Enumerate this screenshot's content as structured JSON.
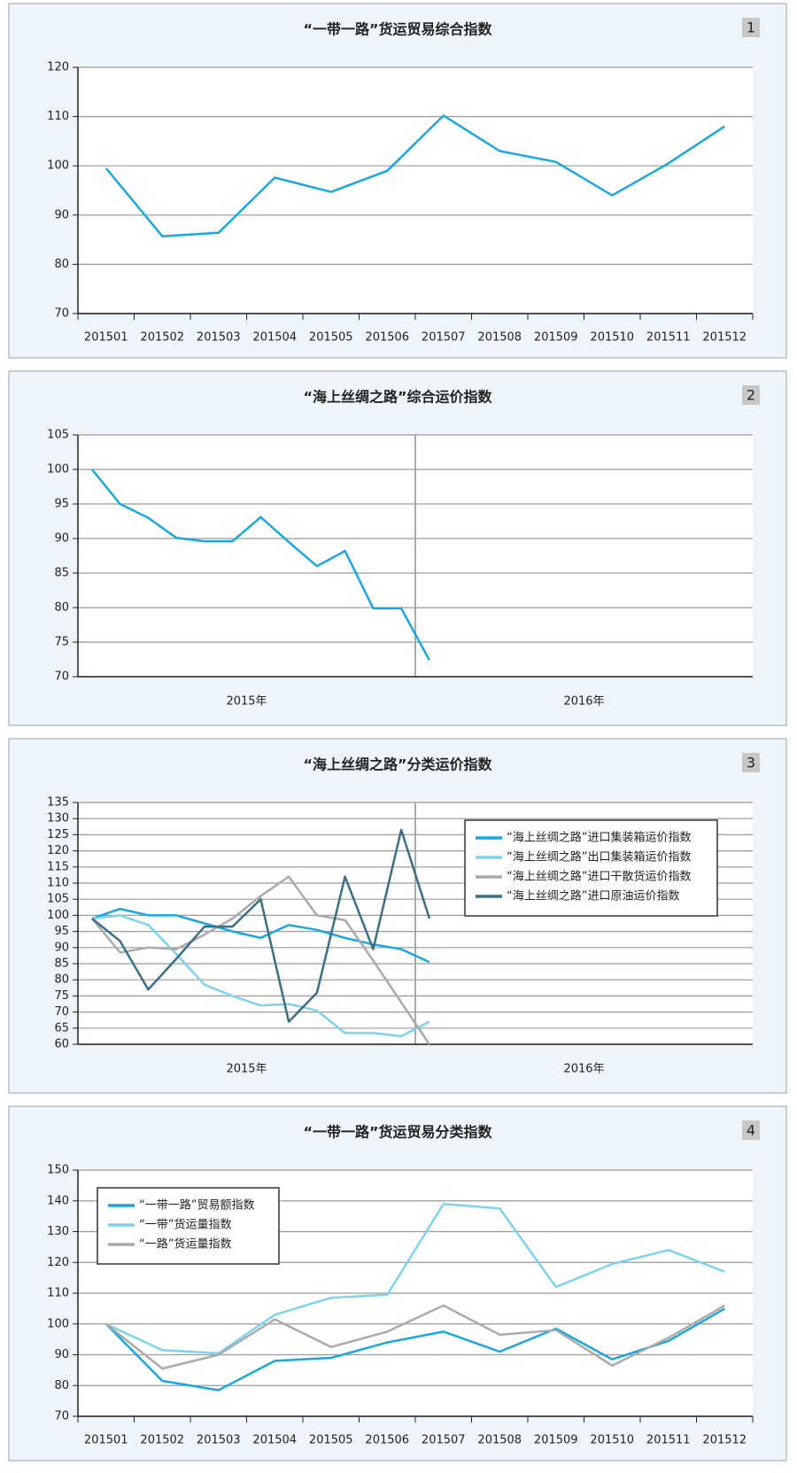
{
  "chart_data": [
    {
      "type": "line",
      "number": "1",
      "title": "“一带一路”货运贸易综合指数",
      "categories": [
        "201501",
        "201502",
        "201503",
        "201504",
        "201505",
        "201506",
        "201507",
        "201508",
        "201509",
        "201510",
        "201511",
        "201512"
      ],
      "series": [
        {
          "color": "#1aa7e0",
          "values": [
            99.5,
            85.7,
            86.4,
            97.6,
            94.7,
            99.0,
            110.2,
            103.0,
            100.8,
            94.0,
            100.5,
            108.0
          ]
        }
      ],
      "ylim": [
        70,
        120
      ],
      "yticks": [
        70,
        80,
        90,
        100,
        110,
        120
      ],
      "grid": true
    },
    {
      "type": "line",
      "number": "2",
      "title": "“海上丝绸之路”综合运价指数",
      "categories": [
        null,
        null,
        null,
        null,
        null,
        null,
        null,
        null,
        null,
        null,
        null,
        null,
        null,
        null,
        null,
        null,
        null,
        null,
        null,
        null,
        null,
        null,
        null,
        null
      ],
      "groups": [
        "2015年",
        "2016年"
      ],
      "series": [
        {
          "color": "#1aa7e0",
          "values": [
            100,
            95,
            93,
            90.1,
            89.6,
            89.6,
            93.1,
            89.5,
            86,
            88.2,
            79.9,
            79.9,
            72.4,
            null,
            null,
            null,
            null,
            null,
            null,
            null,
            null,
            null,
            null,
            null
          ]
        }
      ],
      "ylim": [
        70,
        105
      ],
      "yticks": [
        70,
        75,
        80,
        85,
        90,
        95,
        100,
        105
      ],
      "grid": true
    },
    {
      "type": "line",
      "number": "3",
      "title": "“海上丝绸之路”分类运价指数",
      "categories": [
        null,
        null,
        null,
        null,
        null,
        null,
        null,
        null,
        null,
        null,
        null,
        null,
        null,
        null,
        null,
        null,
        null,
        null,
        null,
        null,
        null,
        null,
        null,
        null
      ],
      "groups": [
        "2015年",
        "2016年"
      ],
      "series": [
        {
          "name": "“海上丝绸之路”进口集装箱运价指数",
          "color": "#1aa7e0",
          "values": [
            99,
            102,
            100,
            100,
            97.5,
            95,
            93,
            97,
            95.5,
            93,
            91,
            89.5,
            85.5,
            null,
            null,
            null,
            null,
            null,
            null,
            null,
            null,
            null,
            null,
            null
          ]
        },
        {
          "name": "“海上丝绸之路”出口集装箱运价指数",
          "color": "#7dd3ee",
          "values": [
            99,
            100,
            97,
            88,
            78.5,
            75,
            72,
            72.5,
            70.5,
            63.5,
            63.5,
            62.5,
            67,
            null,
            null,
            null,
            null,
            null,
            null,
            null,
            null,
            null,
            null,
            null
          ]
        },
        {
          "name": "“海上丝绸之路”进口干散货运价指数",
          "color": "#aaaaaa",
          "values": [
            99,
            88.5,
            90,
            89.5,
            94,
            99,
            106,
            112,
            100,
            98.5,
            86,
            73,
            60,
            null,
            null,
            null,
            null,
            null,
            null,
            null,
            null,
            null,
            null,
            null
          ]
        },
        {
          "name": "“海上丝绸之路”进口原油运价指数",
          "color": "#3d6e87",
          "values": [
            99,
            92,
            77,
            86.5,
            96.5,
            96.5,
            105,
            67,
            76,
            112,
            89.5,
            126.5,
            99,
            null,
            null,
            null,
            null,
            null,
            null,
            null,
            null,
            null,
            null,
            null
          ]
        }
      ],
      "ylim": [
        60,
        135
      ],
      "yticks": [
        60,
        65,
        70,
        75,
        80,
        85,
        90,
        95,
        100,
        105,
        110,
        115,
        120,
        125,
        130,
        135
      ],
      "grid": true,
      "legend": "upper right"
    },
    {
      "type": "line",
      "number": "4",
      "title": "“一带一路”货运贸易分类指数",
      "categories": [
        "201501",
        "201502",
        "201503",
        "201504",
        "201505",
        "201506",
        "201507",
        "201508",
        "201509",
        "201510",
        "201511",
        "201512"
      ],
      "series": [
        {
          "name": "“一带一路”贸易额指数",
          "color": "#1aa7e0",
          "values": [
            100,
            81.5,
            78.5,
            88,
            89,
            94,
            97.5,
            91,
            98.5,
            88.5,
            94.5,
            105
          ]
        },
        {
          "name": "“一带”货运量指数",
          "color": "#7dd3ee",
          "values": [
            100,
            91.5,
            90.5,
            103,
            108.5,
            109.5,
            139,
            137.5,
            112,
            119.5,
            124,
            117
          ]
        },
        {
          "name": "“一路”货运量指数",
          "color": "#aaaaaa",
          "values": [
            100,
            85.5,
            90,
            101.5,
            92.5,
            97.5,
            106,
            96.5,
            98,
            86.5,
            95.5,
            106
          ]
        }
      ],
      "ylim": [
        70,
        150
      ],
      "yticks": [
        70,
        80,
        90,
        100,
        110,
        120,
        130,
        140,
        150
      ],
      "grid": true,
      "legend": "upper left"
    }
  ]
}
